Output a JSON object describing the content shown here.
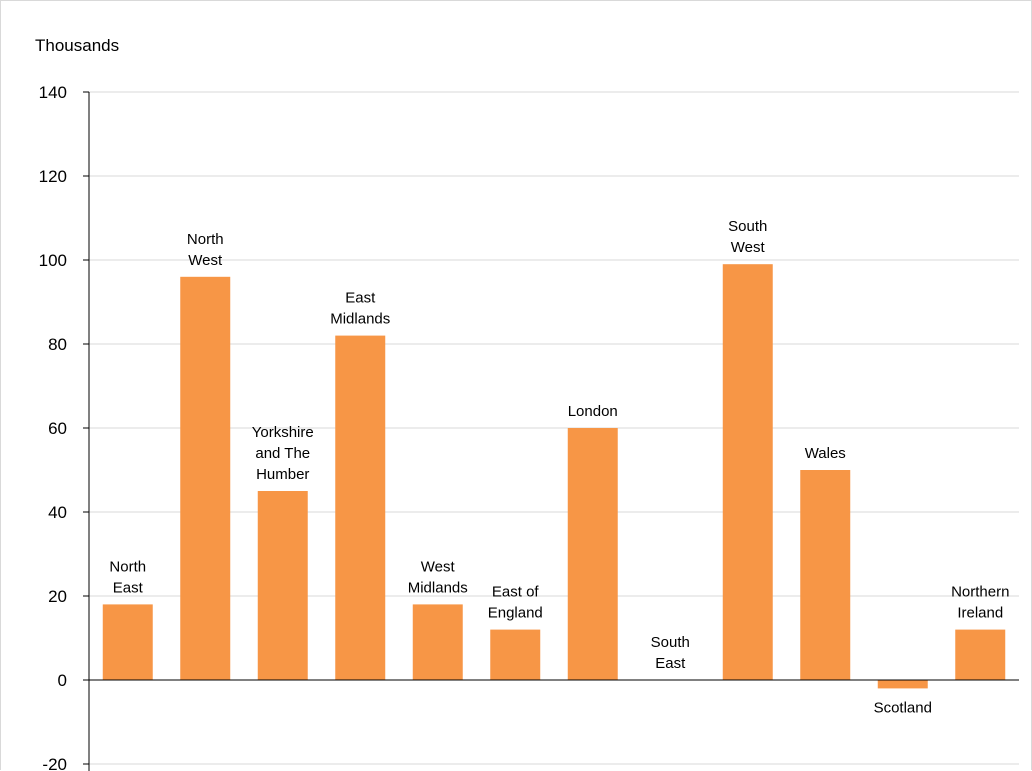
{
  "chart_data": {
    "type": "bar",
    "ylabel": "Thousands",
    "categories": [
      [
        "North",
        "East"
      ],
      [
        "North",
        "West"
      ],
      [
        "Yorkshire",
        "and The",
        "Humber"
      ],
      [
        "East",
        "Midlands"
      ],
      [
        "West",
        "Midlands"
      ],
      [
        "East of",
        "England"
      ],
      [
        "London"
      ],
      [
        "South",
        "East"
      ],
      [
        "South",
        "West"
      ],
      [
        "Wales"
      ],
      [
        "Scotland"
      ],
      [
        "Northern",
        "Ireland"
      ]
    ],
    "values": [
      18,
      96,
      45,
      82,
      18,
      12,
      60,
      0,
      99,
      50,
      -2,
      12
    ],
    "ylim": [
      -20,
      140
    ],
    "yticks": [
      "-20",
      "0",
      "20",
      "40",
      "60",
      "80",
      "100",
      "120",
      "140"
    ],
    "grid": true,
    "legend": "none",
    "colors": {
      "bar": "#F79646",
      "grid": "#d9d9d9",
      "axis": "#000000"
    }
  }
}
